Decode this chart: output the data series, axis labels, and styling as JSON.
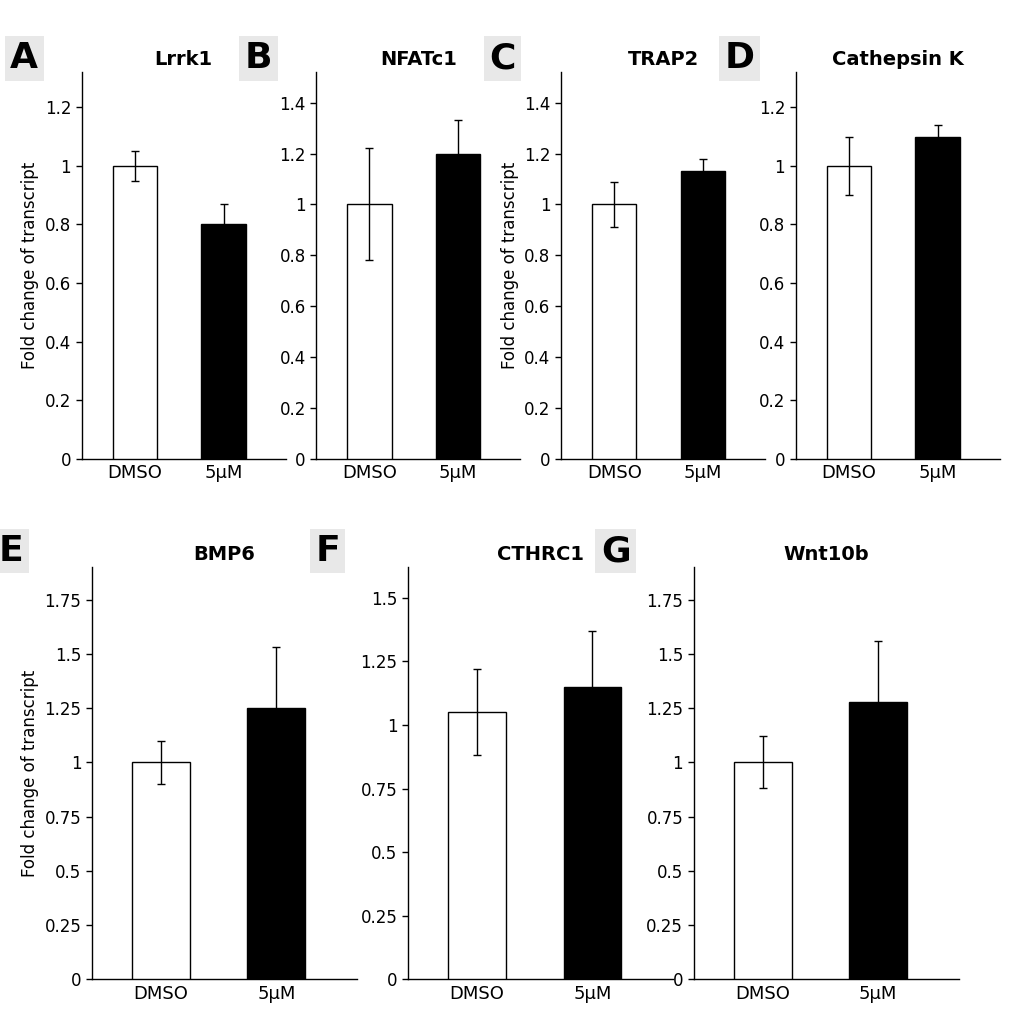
{
  "panels_top": [
    {
      "label": "A",
      "title": "Lrrk1",
      "dmso_val": 1.0,
      "dmso_err": 0.05,
      "ino4_val": 0.8,
      "ino4_err": 0.07,
      "ylim": [
        0,
        1.32
      ],
      "yticks": [
        0,
        0.2,
        0.4,
        0.6,
        0.8,
        1.0,
        1.2
      ],
      "show_ylabel": true
    },
    {
      "label": "B",
      "title": "NFATc1",
      "dmso_val": 1.0,
      "dmso_err": 0.22,
      "ino4_val": 1.2,
      "ino4_err": 0.13,
      "ylim": [
        0,
        1.52
      ],
      "yticks": [
        0,
        0.2,
        0.4,
        0.6,
        0.8,
        1.0,
        1.2,
        1.4
      ],
      "show_ylabel": false
    },
    {
      "label": "C",
      "title": "TRAP2",
      "dmso_val": 1.0,
      "dmso_err": 0.09,
      "ino4_val": 1.13,
      "ino4_err": 0.05,
      "ylim": [
        0,
        1.52
      ],
      "yticks": [
        0,
        0.2,
        0.4,
        0.6,
        0.8,
        1.0,
        1.2,
        1.4
      ],
      "show_ylabel": true
    },
    {
      "label": "D",
      "title": "Cathepsin K",
      "dmso_val": 1.0,
      "dmso_err": 0.1,
      "ino4_val": 1.1,
      "ino4_err": 0.04,
      "ylim": [
        0,
        1.32
      ],
      "yticks": [
        0,
        0.2,
        0.4,
        0.6,
        0.8,
        1.0,
        1.2
      ],
      "show_ylabel": false
    }
  ],
  "panels_bottom": [
    {
      "label": "E",
      "title": "BMP6",
      "dmso_val": 1.0,
      "dmso_err": 0.1,
      "ino4_val": 1.25,
      "ino4_err": 0.28,
      "ylim": [
        0,
        1.9
      ],
      "yticks": [
        0,
        0.25,
        0.5,
        0.75,
        1.0,
        1.25,
        1.5,
        1.75
      ],
      "show_ylabel": true
    },
    {
      "label": "F",
      "title": "CTHRC1",
      "dmso_val": 1.05,
      "dmso_err": 0.17,
      "ino4_val": 1.15,
      "ino4_err": 0.22,
      "ylim": [
        0,
        1.62
      ],
      "yticks": [
        0,
        0.25,
        0.5,
        0.75,
        1.0,
        1.25,
        1.5
      ],
      "show_ylabel": false
    },
    {
      "label": "G",
      "title": "Wnt10b",
      "dmso_val": 1.0,
      "dmso_err": 0.12,
      "ino4_val": 1.28,
      "ino4_err": 0.28,
      "ylim": [
        0,
        1.9
      ],
      "yticks": [
        0,
        0.25,
        0.5,
        0.75,
        1.0,
        1.25,
        1.5,
        1.75
      ],
      "show_ylabel": false
    }
  ],
  "bar_width": 0.5,
  "xlabel_dmso": "DMSO",
  "xlabel_5um": "5μM",
  "ylabel": "Fold change of transcript",
  "bar_color_dmso": "white",
  "bar_color_ino4": "black",
  "edge_color": "black",
  "panel_label_fontsize": 26,
  "title_fontsize": 14,
  "tick_fontsize": 12,
  "xlabel_fontsize": 13,
  "ylabel_fontsize": 12
}
